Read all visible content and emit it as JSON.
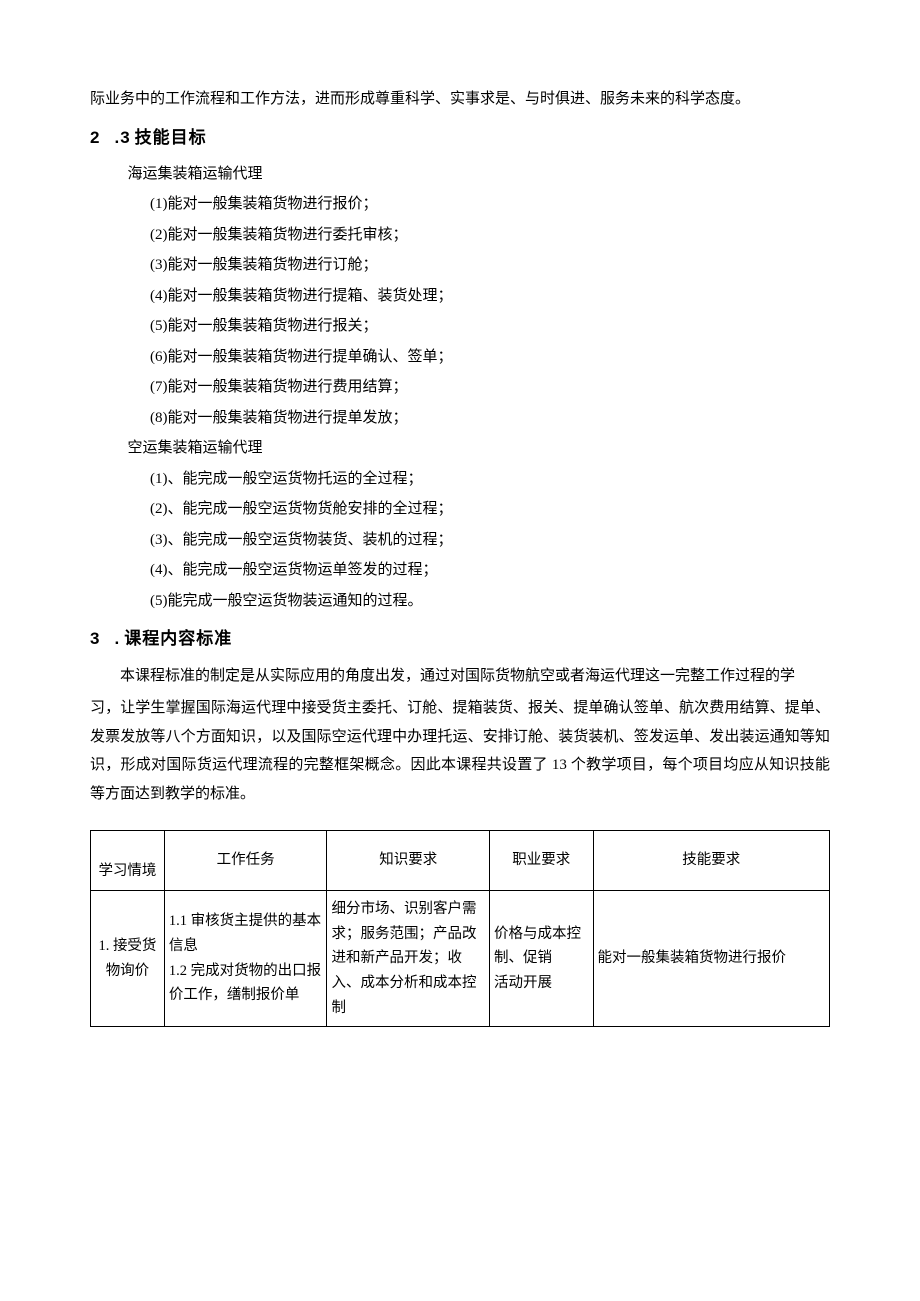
{
  "intro_tail": "际业务中的工作流程和工作方法，进而形成尊重科学、实事求是、与时俱进、服务未来的科学态度。",
  "h23": {
    "num": "2",
    "dot": ".3",
    "title": "技能目标"
  },
  "sea_title": "海运集装箱运输代理",
  "sea_items": [
    "(1)能对一般集装箱货物进行报价；",
    "(2)能对一般集装箱货物进行委托审核；",
    "(3)能对一般集装箱货物进行订舱；",
    "(4)能对一般集装箱货物进行提箱、装货处理；",
    "(5)能对一般集装箱货物进行报关；",
    "(6)能对一般集装箱货物进行提单确认、签单；",
    "(7)能对一般集装箱货物进行费用结算；",
    "(8)能对一般集装箱货物进行提单发放；"
  ],
  "air_title": "空运集装箱运输代理",
  "air_items": [
    "(1)、能完成一般空运货物托运的全过程；",
    "(2)、能完成一般空运货物货舱安排的全过程；",
    "(3)、能完成一般空运货物装货、装机的过程；",
    "(4)、能完成一般空运货物运单签发的过程；",
    "(5)能完成一般空运货物装运通知的过程。"
  ],
  "h3": {
    "num": "3",
    "dot": ".",
    "title": "课程内容标准"
  },
  "para3_1": "本课程标准的制定是从实际应用的角度出发，通过对国际货物航空或者海运代理这一完整工作过程的学",
  "para3_2": "习，让学生掌握国际海运代理中接受货主委托、订舱、提箱装货、报关、提单确认签单、航次费用结算、提单、发票发放等八个方面知识，以及国际空运代理中办理托运、安排订舱、装货装机、签发运单、发出装运通知等知识，形成对国际货运代理流程的完整框架概念。因此本课程共设置了 13 个教学项目，每个项目均应从知识技能等方面达到教学的标准。",
  "table": {
    "headers": [
      "学习情境",
      "工作任务",
      "知识要求",
      "职业要求",
      "技能要求"
    ],
    "row1": {
      "c1": "1. 接受货物询价",
      "c2": "1.1 审核货主提供的基本信息\n1.2 完成对货物的出口报价工作，缮制报价单",
      "c3": "细分市场、识别客户需求；服务范围；产品改进和新产品开发；收入、成本分析和成本控制",
      "c4": "价格与成本控制、促销\n活动开展",
      "c5": "能对一般集装箱货物进行报价"
    }
  }
}
